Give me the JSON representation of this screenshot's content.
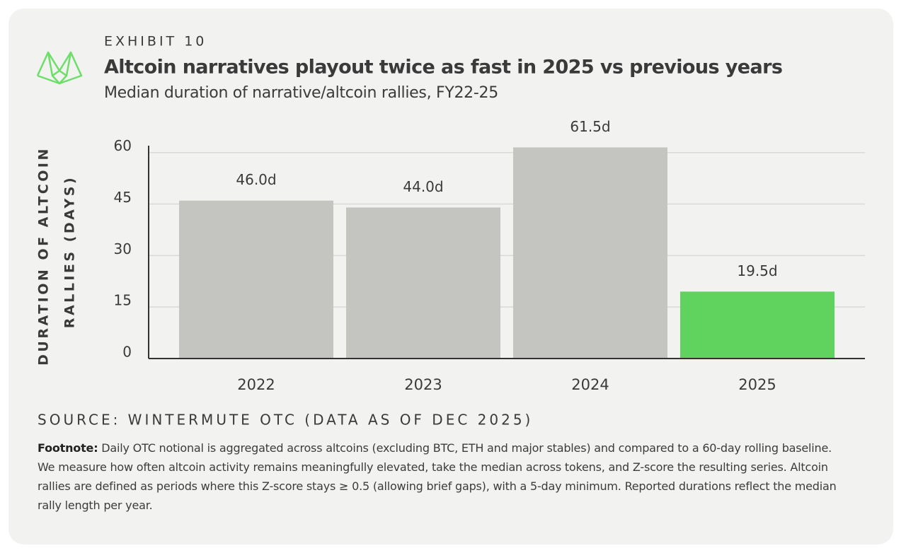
{
  "chart_data": {
    "type": "bar",
    "exhibit": "EXHIBIT 10",
    "title": "Altcoin narratives playout twice as fast in 2025 vs previous years",
    "subtitle": "Median duration of narrative/altcoin rallies, FY22-25",
    "y_label": [
      "DURATION OF ALTCOIN",
      "RALLIES (DAYS)"
    ],
    "categories": [
      "2022",
      "2023",
      "2024",
      "2025"
    ],
    "values": [
      46.0,
      44.0,
      61.5,
      19.5
    ],
    "value_labels": [
      "46.0d",
      "44.0d",
      "61.5d",
      "19.5d"
    ],
    "colors": [
      "#c4c5c1",
      "#c4c5c1",
      "#c4c5c1",
      "#5fd35e"
    ],
    "ylim": [
      0,
      62
    ],
    "yticks": [
      0,
      15,
      30,
      45,
      60
    ],
    "grid": true,
    "source": "SOURCE: WINTERMUTE OTC (DATA AS OF DEC 2025)",
    "footnote_label": "Footnote:",
    "footnote": "Daily OTC notional is aggregated across altcoins (excluding BTC, ETH and major stables) and compared to a 60-day rolling baseline. We measure how often altcoin activity remains meaningfully elevated, take the median across tokens, and Z-score the resulting series. Altcoin rallies are defined as periods where this Z-score stays ≥ 0.5 (allowing brief gaps), with a 5-day minimum. Reported durations reflect the median rally length per year."
  }
}
